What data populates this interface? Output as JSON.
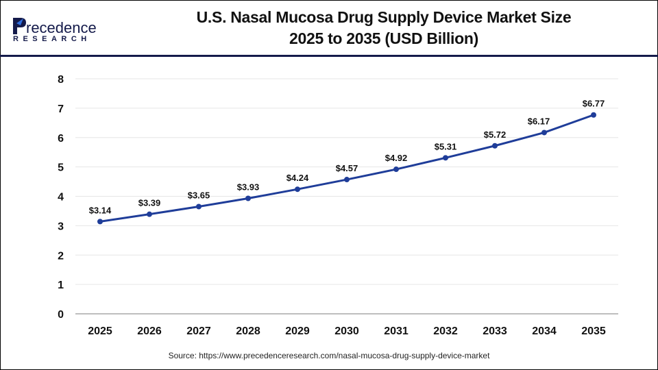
{
  "logo": {
    "line1": "Precedence",
    "line2": "RESEARCH"
  },
  "title_line1": "U.S. Nasal Mucosa Drug Supply Device Market Size",
  "title_line2": "2025 to 2035 (USD Billion)",
  "source": "Source: https://www.precedenceresearch.com/nasal-mucosa-drug-supply-device-market",
  "colors": {
    "line": "#1f3d99",
    "header_border": "#141a4a",
    "grid": "#e6e6e6",
    "logo_dark": "#141a4a",
    "logo_blue": "#2f6fe0"
  },
  "chart_data": {
    "type": "line",
    "categories": [
      "2025",
      "2026",
      "2027",
      "2028",
      "2029",
      "2030",
      "2031",
      "2032",
      "2033",
      "2034",
      "2035"
    ],
    "values": [
      3.14,
      3.39,
      3.65,
      3.93,
      4.24,
      4.57,
      4.92,
      5.31,
      5.72,
      6.17,
      6.77
    ],
    "data_labels": [
      "$3.14",
      "$3.39",
      "$3.65",
      "$3.93",
      "$4.24",
      "$4.57",
      "$4.92",
      "$5.31",
      "$5.72",
      "$6.17",
      "$6.77"
    ],
    "ylim": [
      0,
      8
    ],
    "yticks": [
      "0",
      "1",
      "2",
      "3",
      "4",
      "5",
      "6",
      "7",
      "8"
    ],
    "grid": true,
    "title": "U.S. Nasal Mucosa Drug Supply Device Market Size 2025 to 2035 (USD Billion)"
  }
}
